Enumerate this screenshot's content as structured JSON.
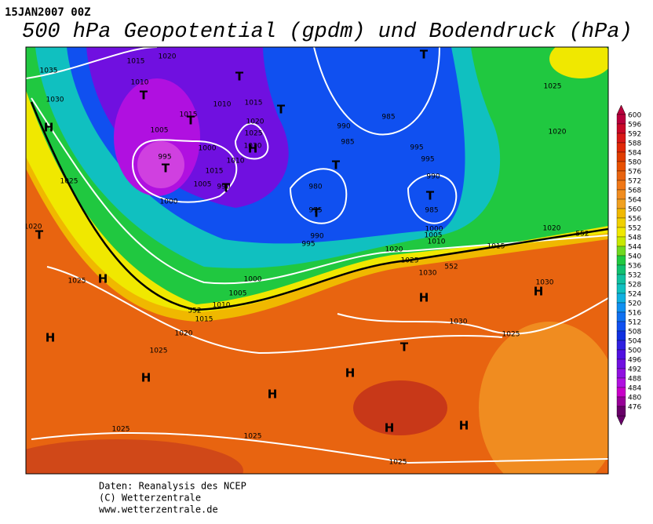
{
  "header": {
    "date": "15JAN2007 00Z",
    "title": "500 hPa Geopotential (gpdm) und Bodendruck (hPa)"
  },
  "colorbar": {
    "ticks": [
      600,
      596,
      592,
      588,
      584,
      580,
      576,
      572,
      568,
      564,
      560,
      556,
      552,
      548,
      544,
      540,
      536,
      532,
      528,
      524,
      520,
      516,
      512,
      508,
      504,
      500,
      496,
      492,
      488,
      484,
      480,
      476
    ],
    "colors": [
      "#b8003c",
      "#c80828",
      "#d81818",
      "#e02808",
      "#e03c00",
      "#e85000",
      "#e86410",
      "#f07818",
      "#f08c20",
      "#f0a020",
      "#f0b800",
      "#f0d000",
      "#f0e800",
      "#c8e800",
      "#70d820",
      "#20c840",
      "#10c070",
      "#10c0a0",
      "#10c0c0",
      "#10b0e0",
      "#1090f0",
      "#1070f0",
      "#1050f0",
      "#1030e0",
      "#3020e0",
      "#5010e0",
      "#7010e0",
      "#9010e0",
      "#b010e0",
      "#c800c8",
      "#980098",
      "#680068"
    ]
  },
  "isobar_labels": [
    "1035",
    "1030",
    "1015",
    "1020",
    "1010",
    "1015",
    "1010",
    "1015",
    "1020",
    "1025",
    "1030",
    "1005",
    "995",
    "1000",
    "1010",
    "1015",
    "1005",
    "990",
    "1000",
    "1025",
    "1020",
    "990",
    "985",
    "985",
    "980",
    "975",
    "990",
    "995",
    "995",
    "995",
    "990",
    "985",
    "1000",
    "1005",
    "1010",
    "1020",
    "1025",
    "1030",
    "1015",
    "1020",
    "552",
    "552",
    "552",
    "1025",
    "1000",
    "1005",
    "1010",
    "1015",
    "1020",
    "1025",
    "1030",
    "1030",
    "1025",
    "1025",
    "1025",
    "1025",
    "1025",
    "1020"
  ],
  "pressure_centers": [
    "T",
    "T",
    "T",
    "T",
    "H",
    "T",
    "T",
    "H",
    "T",
    "T",
    "T",
    "T",
    "T",
    "H",
    "H",
    "H",
    "H",
    "T",
    "H",
    "H",
    "H",
    "H",
    "H"
  ],
  "footer": {
    "lines": [
      "Daten: Reanalysis des NCEP",
      "(C) Wetterzentrale",
      "www.wetterzentrale.de"
    ]
  }
}
